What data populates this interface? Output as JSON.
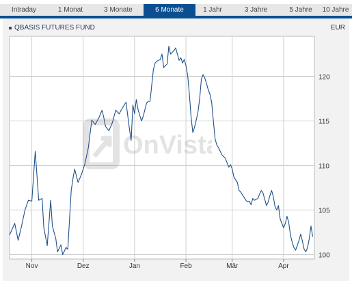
{
  "tabs": [
    {
      "label": "Intraday",
      "active": false
    },
    {
      "label": "1 Monat",
      "active": false
    },
    {
      "label": "3 Monate",
      "active": false
    },
    {
      "label": "6 Monate",
      "active": true
    },
    {
      "label": "1 Jahr",
      "active": false
    },
    {
      "label": "3 Jahre",
      "active": false
    },
    {
      "label": "5 Jahre",
      "active": false
    },
    {
      "label": "10 Jahre",
      "active": false
    }
  ],
  "currency": "EUR",
  "watermark": "OnVista",
  "colors": {
    "accent": "#0b4f91",
    "line": "#1d4f8c",
    "plot_bg": "#ffffff",
    "frame_bg": "#f2f2f2",
    "grid": "#cfcfcf"
  },
  "chart_data": {
    "type": "line",
    "title": "",
    "xlabel": "",
    "ylabel": "",
    "grid": true,
    "legend": "top-left",
    "x_range": [
      0,
      178
    ],
    "ylim": [
      99.5,
      124.5
    ],
    "y_ticks": [
      100,
      105,
      110,
      115,
      120
    ],
    "x_ticks": [
      {
        "label": "Nov",
        "x": 13
      },
      {
        "label": "Dez",
        "x": 43
      },
      {
        "label": "Jan",
        "x": 73
      },
      {
        "label": "Feb",
        "x": 103
      },
      {
        "label": "Mär",
        "x": 130
      },
      {
        "label": "Apr",
        "x": 160
      }
    ],
    "series": [
      {
        "name": "QBASIS FUTURES FUND",
        "x": [
          0,
          3,
          5,
          7,
          9,
          11,
          13,
          15,
          17,
          19,
          20,
          22,
          24,
          25,
          27,
          28,
          30,
          31,
          33,
          34,
          36,
          37,
          38,
          40,
          42,
          44,
          46,
          48,
          50,
          52,
          54,
          55,
          56,
          58,
          60,
          62,
          64,
          66,
          68,
          70,
          71,
          72,
          73,
          74,
          75,
          77,
          78,
          80,
          81,
          82,
          84,
          85,
          86,
          88,
          89,
          90,
          92,
          93,
          94,
          96,
          97,
          99,
          100,
          101,
          102,
          103,
          104,
          105,
          106,
          107,
          108,
          109,
          110,
          111,
          112,
          113,
          114,
          115,
          116,
          117,
          118,
          119,
          120,
          121,
          122,
          123,
          124,
          125,
          126,
          127,
          128,
          129,
          130,
          131,
          132,
          133,
          134,
          135,
          136,
          137,
          138,
          139,
          140,
          141,
          142,
          143,
          144,
          145,
          146,
          147,
          148,
          149,
          150,
          151,
          152,
          153,
          154,
          155,
          156,
          157,
          158,
          159,
          160,
          161,
          162,
          163,
          164,
          165,
          166,
          167,
          168,
          169,
          170,
          171,
          172,
          173,
          174,
          175,
          176,
          177
        ],
        "y": [
          102.2,
          103.5,
          101.6,
          103.2,
          105.0,
          106.1,
          106.0,
          111.6,
          106.1,
          106.3,
          103.0,
          101.0,
          106.1,
          103.2,
          101.8,
          100.3,
          101.1,
          100.0,
          100.8,
          100.6,
          107.2,
          108.5,
          109.6,
          108.1,
          109.0,
          110.2,
          112.0,
          115.1,
          114.6,
          115.3,
          116.2,
          115.4,
          114.4,
          113.9,
          114.8,
          116.2,
          115.8,
          116.5,
          117.1,
          114.1,
          112.8,
          116.8,
          115.8,
          117.4,
          116.3,
          115.0,
          115.5,
          117.0,
          117.2,
          117.2,
          120.8,
          121.5,
          121.7,
          121.9,
          122.5,
          121.0,
          121.4,
          123.4,
          122.5,
          122.9,
          123.2,
          121.8,
          122.1,
          121.5,
          121.9,
          121.2,
          120.1,
          118.0,
          115.4,
          113.7,
          114.3,
          115.1,
          116.0,
          117.5,
          119.7,
          120.2,
          119.8,
          119.2,
          118.5,
          118.0,
          117.1,
          115.0,
          113.0,
          112.3,
          112.0,
          111.6,
          111.2,
          111.0,
          110.8,
          110.3,
          109.8,
          110.1,
          109.6,
          108.7,
          108.4,
          108.1,
          107.2,
          107.0,
          106.7,
          106.4,
          106.1,
          105.9,
          106.0,
          105.6,
          106.3,
          106.1,
          106.2,
          106.3,
          106.8,
          107.2,
          106.9,
          106.2,
          105.5,
          105.9,
          106.6,
          107.2,
          106.5,
          105.4,
          105.0,
          105.5,
          104.0,
          103.5,
          103.0,
          103.5,
          104.3,
          103.6,
          102.2,
          101.4,
          100.8,
          100.5,
          101.0,
          101.6,
          102.3,
          101.5,
          100.6,
          100.3,
          100.8,
          101.8,
          103.2,
          102.0
        ]
      }
    ]
  }
}
